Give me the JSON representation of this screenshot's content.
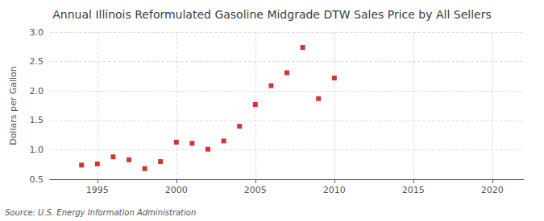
{
  "chart_data": {
    "type": "scatter",
    "title": "Annual Illinois Reformulated Gasoline Midgrade DTW Sales Price by All Sellers",
    "ylabel": "Dollars per Gallon",
    "source": "Source: U.S. Energy Information Administration",
    "x": [
      1994,
      1995,
      1996,
      1997,
      1998,
      1999,
      2000,
      2001,
      2002,
      2003,
      2004,
      2005,
      2006,
      2007,
      2008,
      2009,
      2010
    ],
    "values": [
      0.74,
      0.76,
      0.88,
      0.83,
      0.68,
      0.8,
      1.13,
      1.11,
      1.01,
      1.15,
      1.4,
      1.77,
      2.09,
      2.31,
      2.74,
      1.87,
      2.22
    ],
    "color": "#cc0000",
    "marker": "square",
    "xlim": [
      1992,
      2022
    ],
    "ylim": [
      0.5,
      3.0
    ],
    "xticks": [
      1995,
      2000,
      2005,
      2010,
      2015,
      2020
    ],
    "yticks": [
      0.5,
      {
        "value": 1.0,
        "label": "1.0"
      },
      1.5,
      {
        "value": 2.0,
        "label": "2.0"
      },
      2.5,
      {
        "value": 3.0,
        "label": "3.0"
      }
    ],
    "grid": true
  }
}
